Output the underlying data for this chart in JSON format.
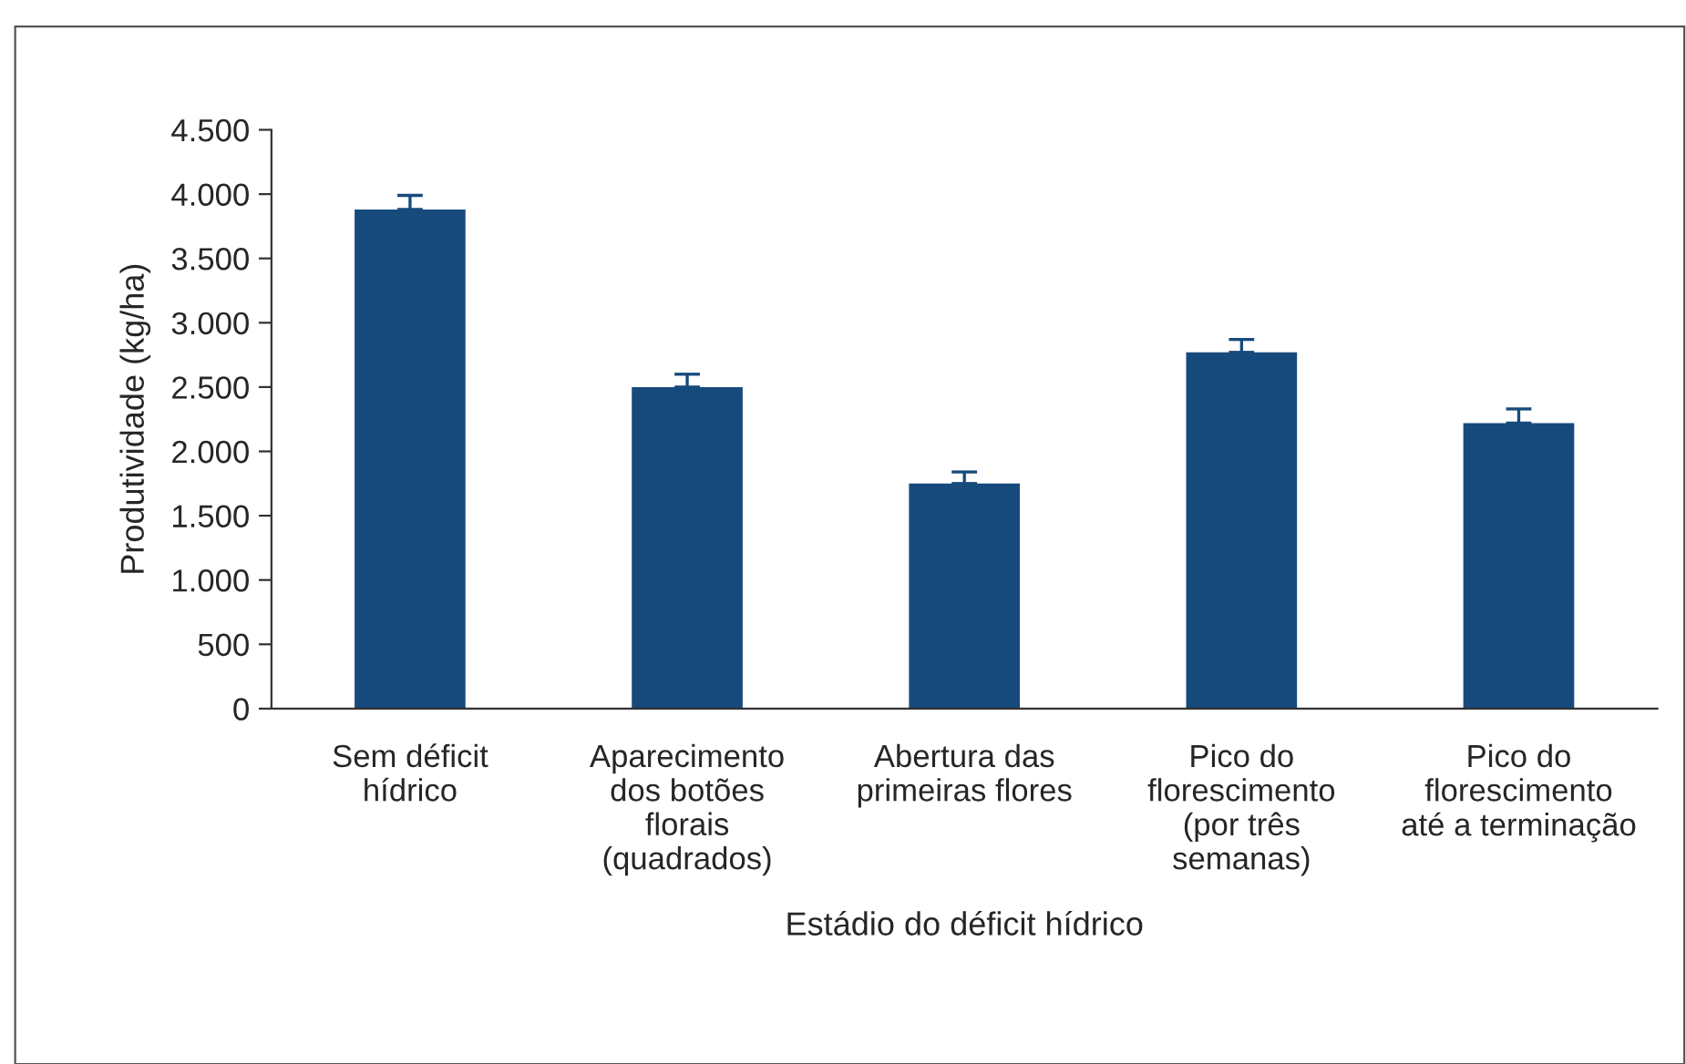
{
  "chart_data": {
    "type": "bar",
    "xlabel": "Estádio do déficit hídrico",
    "ylabel": "Produtividade (kg/ha)",
    "categories": [
      "Sem déficit\nhídrico",
      "Aparecimento\ndos botões\nflorais\n(quadrados)",
      "Abertura das\nprimeiras flores",
      "Pico do\nflorescimento\n(por três\nsemanas)",
      "Pico do\nflorescimento\naté a terminação"
    ],
    "values": [
      3880,
      2500,
      1750,
      2770,
      2220
    ],
    "errors": [
      [
        3880,
        3990
      ],
      [
        2500,
        2600
      ],
      [
        1750,
        1840
      ],
      [
        2770,
        2870
      ],
      [
        2220,
        2330
      ]
    ],
    "color": "#174a7c",
    "ylim": [
      0,
      4500
    ],
    "yticks": [
      {
        "value": 0,
        "label": "0"
      },
      {
        "value": 500,
        "label": "500"
      },
      {
        "value": 1000,
        "label": "1.000"
      },
      {
        "value": 1500,
        "label": "1.500"
      },
      {
        "value": 2000,
        "label": "2.000"
      },
      {
        "value": 2500,
        "label": "2.500"
      },
      {
        "value": 3000,
        "label": "3.000"
      },
      {
        "value": 3500,
        "label": "3.500"
      },
      {
        "value": 4000,
        "label": "4.000"
      },
      {
        "value": 4500,
        "label": "4.500"
      }
    ],
    "grid": false,
    "legend": false
  }
}
